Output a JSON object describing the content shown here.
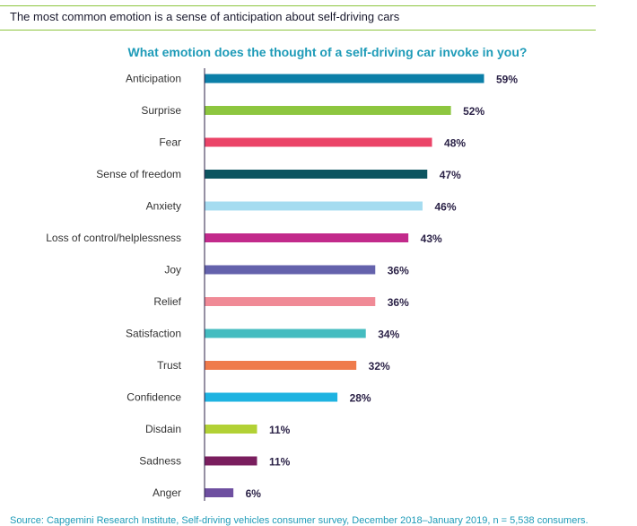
{
  "header": {
    "text": "The most common emotion is a sense of anticipation about self-driving cars"
  },
  "chart_data": {
    "type": "bar",
    "orientation": "horizontal",
    "title": "What emotion does the thought of a self-driving car invoke in you?",
    "categories": [
      "Anticipation",
      "Surprise",
      "Fear",
      "Sense of freedom",
      "Anxiety",
      "Loss of control/helplessness",
      "Joy",
      "Relief",
      "Satisfaction",
      "Trust",
      "Confidence",
      "Disdain",
      "Sadness",
      "Anger"
    ],
    "values": [
      59,
      52,
      48,
      47,
      46,
      43,
      36,
      36,
      34,
      32,
      28,
      11,
      11,
      6
    ],
    "value_labels": [
      "59%",
      "52%",
      "48%",
      "47%",
      "46%",
      "43%",
      "36%",
      "36%",
      "34%",
      "32%",
      "28%",
      "11%",
      "11%",
      "6%"
    ],
    "colors": [
      "#0b7fa8",
      "#8dc63f",
      "#eb4468",
      "#0d5560",
      "#a5dcf0",
      "#c22a8b",
      "#6462ac",
      "#f08a96",
      "#44bcc0",
      "#ef7b4b",
      "#1eb3e1",
      "#b2d135",
      "#7a1e5e",
      "#6e4fa0"
    ],
    "label_color": "#2b2247",
    "xlim": [
      0,
      59
    ],
    "grid": false,
    "legend": "none"
  },
  "footer": {
    "source": "Source: Capgemini Research Institute, Self-driving vehicles consumer survey, December 2018–January 2019, n = 5,538 consumers."
  }
}
